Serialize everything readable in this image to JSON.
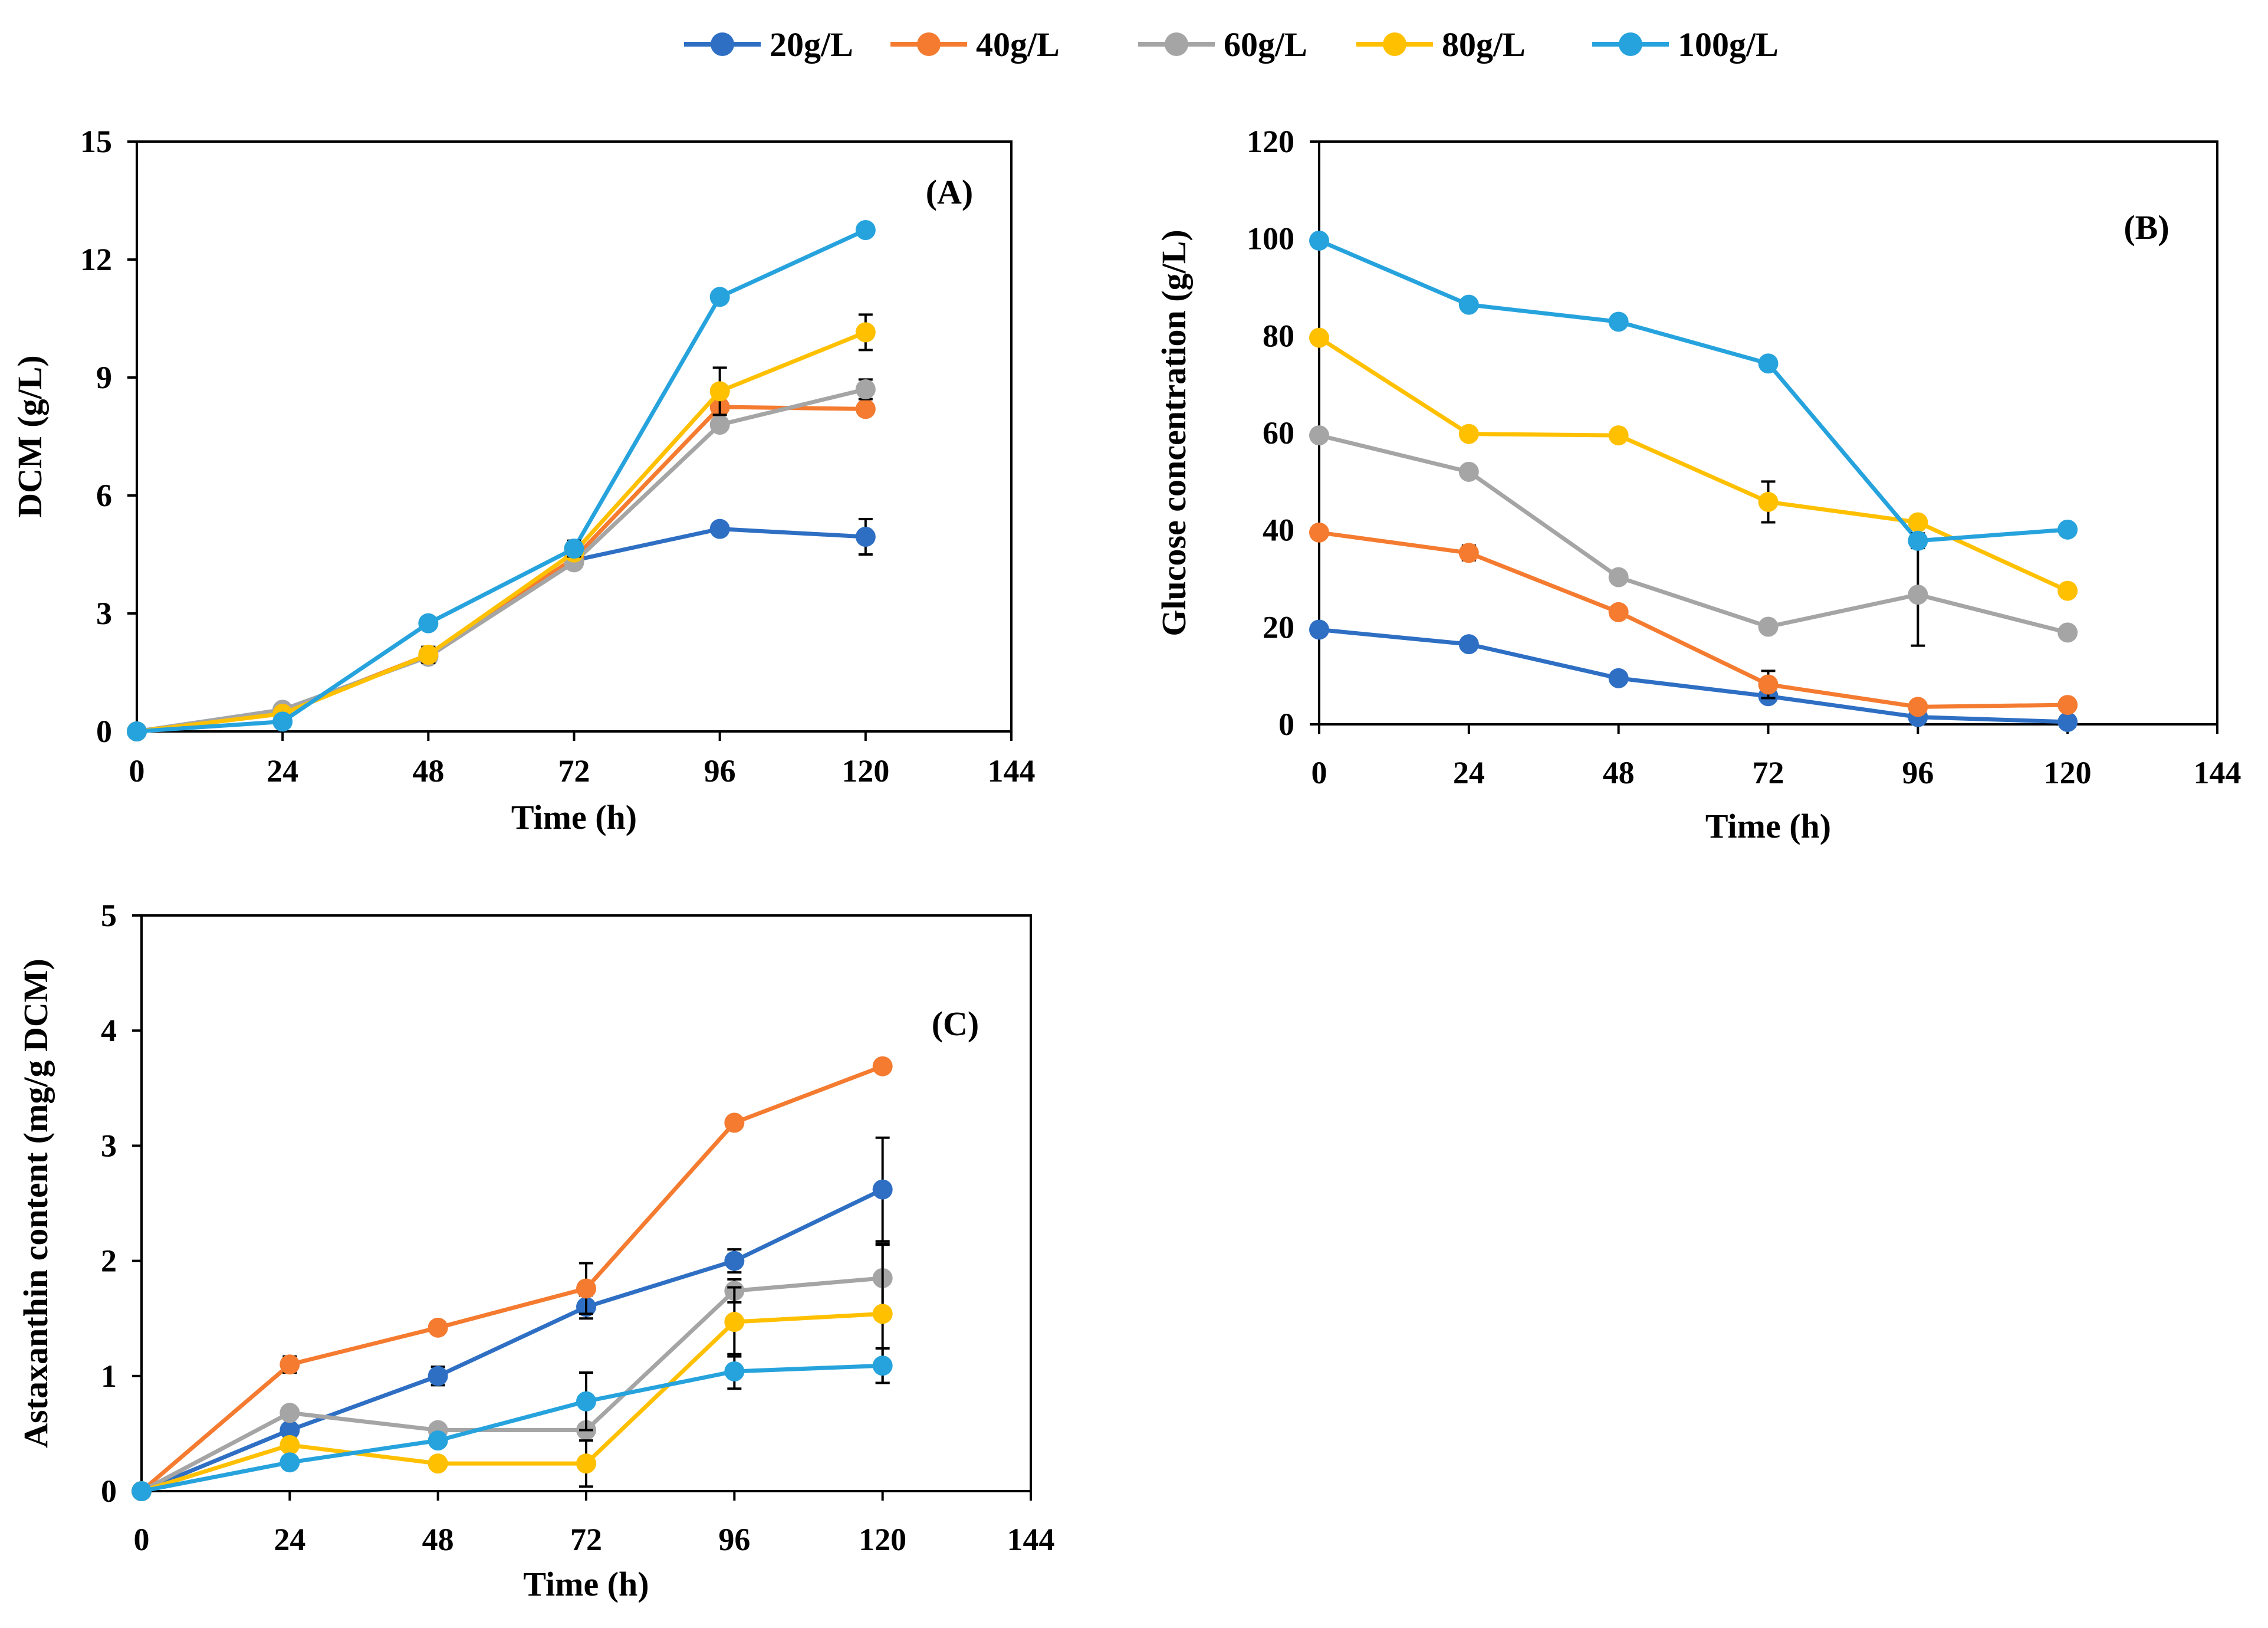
{
  "colors": {
    "20g/L": "#2E6FC4",
    "40g/L": "#F47B30",
    "60g/L": "#A5A5A5",
    "80g/L": "#FFC000",
    "100g/L": "#26A3DD"
  },
  "legend": [
    "20g/L",
    "40g/L",
    "60g/L",
    "80g/L",
    "100g/L"
  ],
  "chart_data": [
    {
      "type": "line",
      "panel": "(A)",
      "title": "",
      "xlabel": "Time (h)",
      "ylabel": "DCM  (g/L)",
      "xlim": [
        0,
        144
      ],
      "ylim": [
        0,
        15
      ],
      "xticks": [
        "0",
        "24",
        "48",
        "72",
        "96",
        "120",
        "144"
      ],
      "yticks": [
        "0",
        "3",
        "6",
        "9",
        "12",
        "15"
      ],
      "x": [
        0,
        24,
        48,
        72,
        96,
        120
      ],
      "series": [
        {
          "name": "20g/L",
          "values": [
            0,
            0.55,
            1.9,
            4.35,
            5.15,
            4.95
          ],
          "errors": [
            0,
            0.05,
            0.1,
            0.1,
            0.1,
            0.45
          ]
        },
        {
          "name": "40g/L",
          "values": [
            0,
            0.5,
            1.95,
            4.4,
            8.25,
            8.2
          ],
          "errors": [
            0,
            0.05,
            0.1,
            0.1,
            0.1,
            0.1
          ]
        },
        {
          "name": "60g/L",
          "values": [
            0,
            0.55,
            1.9,
            4.3,
            7.8,
            8.7
          ],
          "errors": [
            0,
            0.05,
            0.1,
            0.1,
            0.1,
            0.25
          ]
        },
        {
          "name": "80g/L",
          "values": [
            0,
            0.45,
            1.95,
            4.55,
            8.65,
            10.15
          ],
          "errors": [
            0,
            0.05,
            0.2,
            0.15,
            0.6,
            0.45
          ]
        },
        {
          "name": "100g/L",
          "values": [
            0,
            0.25,
            2.75,
            4.65,
            11.05,
            12.75
          ],
          "errors": [
            0,
            0.05,
            0.1,
            0.2,
            0.1,
            0.15
          ]
        }
      ]
    },
    {
      "type": "line",
      "panel": "(B)",
      "title": "",
      "xlabel": "Time (h)",
      "ylabel": "Glucose concentration (g/L)",
      "xlim": [
        0,
        144
      ],
      "ylim": [
        0,
        120
      ],
      "xticks": [
        "0",
        "24",
        "48",
        "72",
        "96",
        "120",
        "144"
      ],
      "yticks": [
        "0",
        "20",
        "40",
        "60",
        "80",
        "100",
        "120"
      ],
      "x": [
        0,
        24,
        48,
        72,
        96,
        120
      ],
      "series": [
        {
          "name": "20g/L",
          "values": [
            19.5,
            16.5,
            9.5,
            5.8,
            1.5,
            0.5
          ],
          "errors": [
            0.5,
            0.5,
            0.5,
            0.5,
            0.5,
            0.5
          ]
        },
        {
          "name": "40g/L",
          "values": [
            39.5,
            35.3,
            23.1,
            8.2,
            3.6,
            4.0
          ],
          "errors": [
            0.5,
            1.5,
            0.5,
            2.8,
            0.5,
            0.5
          ]
        },
        {
          "name": "60g/L",
          "values": [
            59.5,
            52.0,
            30.3,
            20.1,
            26.7,
            18.9
          ],
          "errors": [
            0.5,
            1.0,
            0.5,
            0.5,
            10.5,
            0.5
          ]
        },
        {
          "name": "80g/L",
          "values": [
            79.6,
            59.8,
            59.5,
            45.8,
            41.6,
            27.5
          ],
          "errors": [
            0.5,
            0.5,
            0.5,
            4.2,
            0.5,
            0.5
          ]
        },
        {
          "name": "100g/L",
          "values": [
            99.6,
            86.4,
            82.9,
            74.3,
            37.8,
            40.1
          ],
          "errors": [
            0.5,
            0.5,
            0.5,
            0.5,
            1.5,
            0.5
          ]
        }
      ]
    },
    {
      "type": "line",
      "panel": "(C)",
      "title": "",
      "xlabel": "Time (h)",
      "ylabel": "Astaxanthin content  (mg/g DCM)",
      "xlim": [
        0,
        144
      ],
      "ylim": [
        0,
        5
      ],
      "xticks": [
        "0",
        "24",
        "48",
        "72",
        "96",
        "120",
        "144"
      ],
      "yticks": [
        "0",
        "1",
        "2",
        "3",
        "4",
        "5"
      ],
      "x": [
        0,
        24,
        48,
        72,
        96,
        120
      ],
      "series": [
        {
          "name": "20g/L",
          "values": [
            0,
            0.53,
            1.0,
            1.6,
            2.0,
            2.62
          ],
          "errors": [
            0,
            0.03,
            0.08,
            0.1,
            0.1,
            0.45
          ]
        },
        {
          "name": "40g/L",
          "values": [
            0,
            1.1,
            1.42,
            1.76,
            3.2,
            3.69
          ],
          "errors": [
            0,
            0.07,
            0.02,
            0.22,
            0.02,
            0.02
          ]
        },
        {
          "name": "60g/L",
          "values": [
            0,
            0.68,
            0.53,
            0.53,
            1.74,
            1.85
          ],
          "errors": [
            0,
            0.02,
            0.02,
            0.02,
            0.1,
            0.3
          ]
        },
        {
          "name": "80g/L",
          "values": [
            0,
            0.4,
            0.24,
            0.24,
            1.47,
            1.54
          ],
          "errors": [
            0,
            0.02,
            0.02,
            0.2,
            0.3,
            0.6
          ]
        },
        {
          "name": "100g/L",
          "values": [
            0,
            0.25,
            0.44,
            0.78,
            1.04,
            1.09
          ],
          "errors": [
            0,
            0.02,
            0.02,
            0.25,
            0.15,
            0.15
          ]
        }
      ]
    }
  ]
}
